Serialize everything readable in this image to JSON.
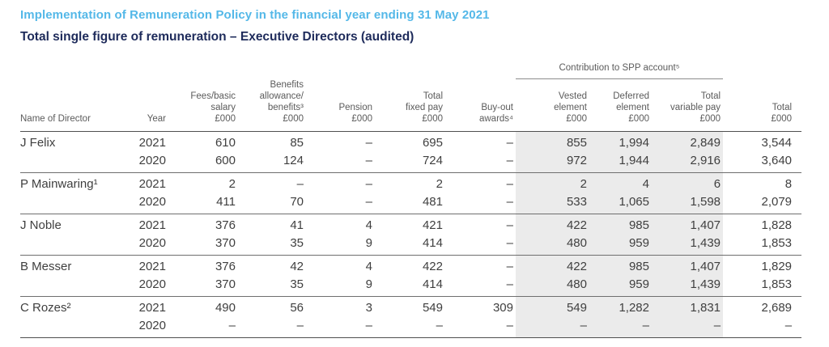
{
  "page": {
    "title": "Implementation of Remuneration Policy in the financial year ending 31 May 2021",
    "subtitle": "Total single figure of remuneration – Executive Directors (audited)"
  },
  "table": {
    "spp_group_header": "Contribution to SPP account⁵",
    "columns": [
      {
        "id": "name",
        "lines": [
          "Name of Director"
        ],
        "align": "left"
      },
      {
        "id": "year",
        "lines": [
          "Year"
        ]
      },
      {
        "id": "fees",
        "lines": [
          "Fees/basic",
          "salary",
          "£000"
        ]
      },
      {
        "id": "benefits",
        "lines": [
          "Benefits",
          "allowance/",
          "benefits³",
          "£000"
        ]
      },
      {
        "id": "pension",
        "lines": [
          "Pension",
          "£000"
        ]
      },
      {
        "id": "fixed",
        "lines": [
          "Total",
          "fixed pay",
          "£000"
        ]
      },
      {
        "id": "buyout",
        "lines": [
          "Buy-out",
          "awards⁴"
        ]
      },
      {
        "id": "vested",
        "lines": [
          "Vested",
          "element",
          "£000"
        ],
        "spp": true
      },
      {
        "id": "deferred",
        "lines": [
          "Deferred",
          "element",
          "£000"
        ],
        "spp": true
      },
      {
        "id": "variable",
        "lines": [
          "Total",
          "variable pay",
          "£000"
        ],
        "spp": true
      },
      {
        "id": "total",
        "lines": [
          "Total",
          "£000"
        ]
      }
    ],
    "directors": [
      {
        "name": "J Felix",
        "rows": [
          {
            "year": "2021",
            "values": [
              "610",
              "85",
              "–",
              "695",
              "–",
              "855",
              "1,994",
              "2,849",
              "3,544"
            ]
          },
          {
            "year": "2020",
            "values": [
              "600",
              "124",
              "–",
              "724",
              "–",
              "972",
              "1,944",
              "2,916",
              "3,640"
            ]
          }
        ]
      },
      {
        "name": "P Mainwaring¹",
        "rows": [
          {
            "year": "2021",
            "values": [
              "2",
              "–",
              "–",
              "2",
              "–",
              "2",
              "4",
              "6",
              "8"
            ]
          },
          {
            "year": "2020",
            "values": [
              "411",
              "70",
              "–",
              "481",
              "–",
              "533",
              "1,065",
              "1,598",
              "2,079"
            ]
          }
        ]
      },
      {
        "name": "J Noble",
        "rows": [
          {
            "year": "2021",
            "values": [
              "376",
              "41",
              "4",
              "421",
              "–",
              "422",
              "985",
              "1,407",
              "1,828"
            ]
          },
          {
            "year": "2020",
            "values": [
              "370",
              "35",
              "9",
              "414",
              "–",
              "480",
              "959",
              "1,439",
              "1,853"
            ]
          }
        ]
      },
      {
        "name": "B Messer",
        "rows": [
          {
            "year": "2021",
            "values": [
              "376",
              "42",
              "4",
              "422",
              "–",
              "422",
              "985",
              "1,407",
              "1,829"
            ]
          },
          {
            "year": "2020",
            "values": [
              "370",
              "35",
              "9",
              "414",
              "–",
              "480",
              "959",
              "1,439",
              "1,853"
            ]
          }
        ]
      },
      {
        "name": "C Rozes²",
        "rows": [
          {
            "year": "2021",
            "values": [
              "490",
              "56",
              "3",
              "549",
              "309",
              "549",
              "1,282",
              "1,831",
              "2,689"
            ]
          },
          {
            "year": "2020",
            "values": [
              "–",
              "–",
              "–",
              "–",
              "–",
              "–",
              "–",
              "–",
              "–"
            ]
          }
        ]
      }
    ]
  },
  "colors": {
    "title_blue": "#54b8e8",
    "subtitle_navy": "#1e2b5b",
    "header_text": "#5b5b5b",
    "body_text": "#3f3f3f",
    "spp_band": "#ebebeb",
    "rule": "#4f4f4f"
  }
}
